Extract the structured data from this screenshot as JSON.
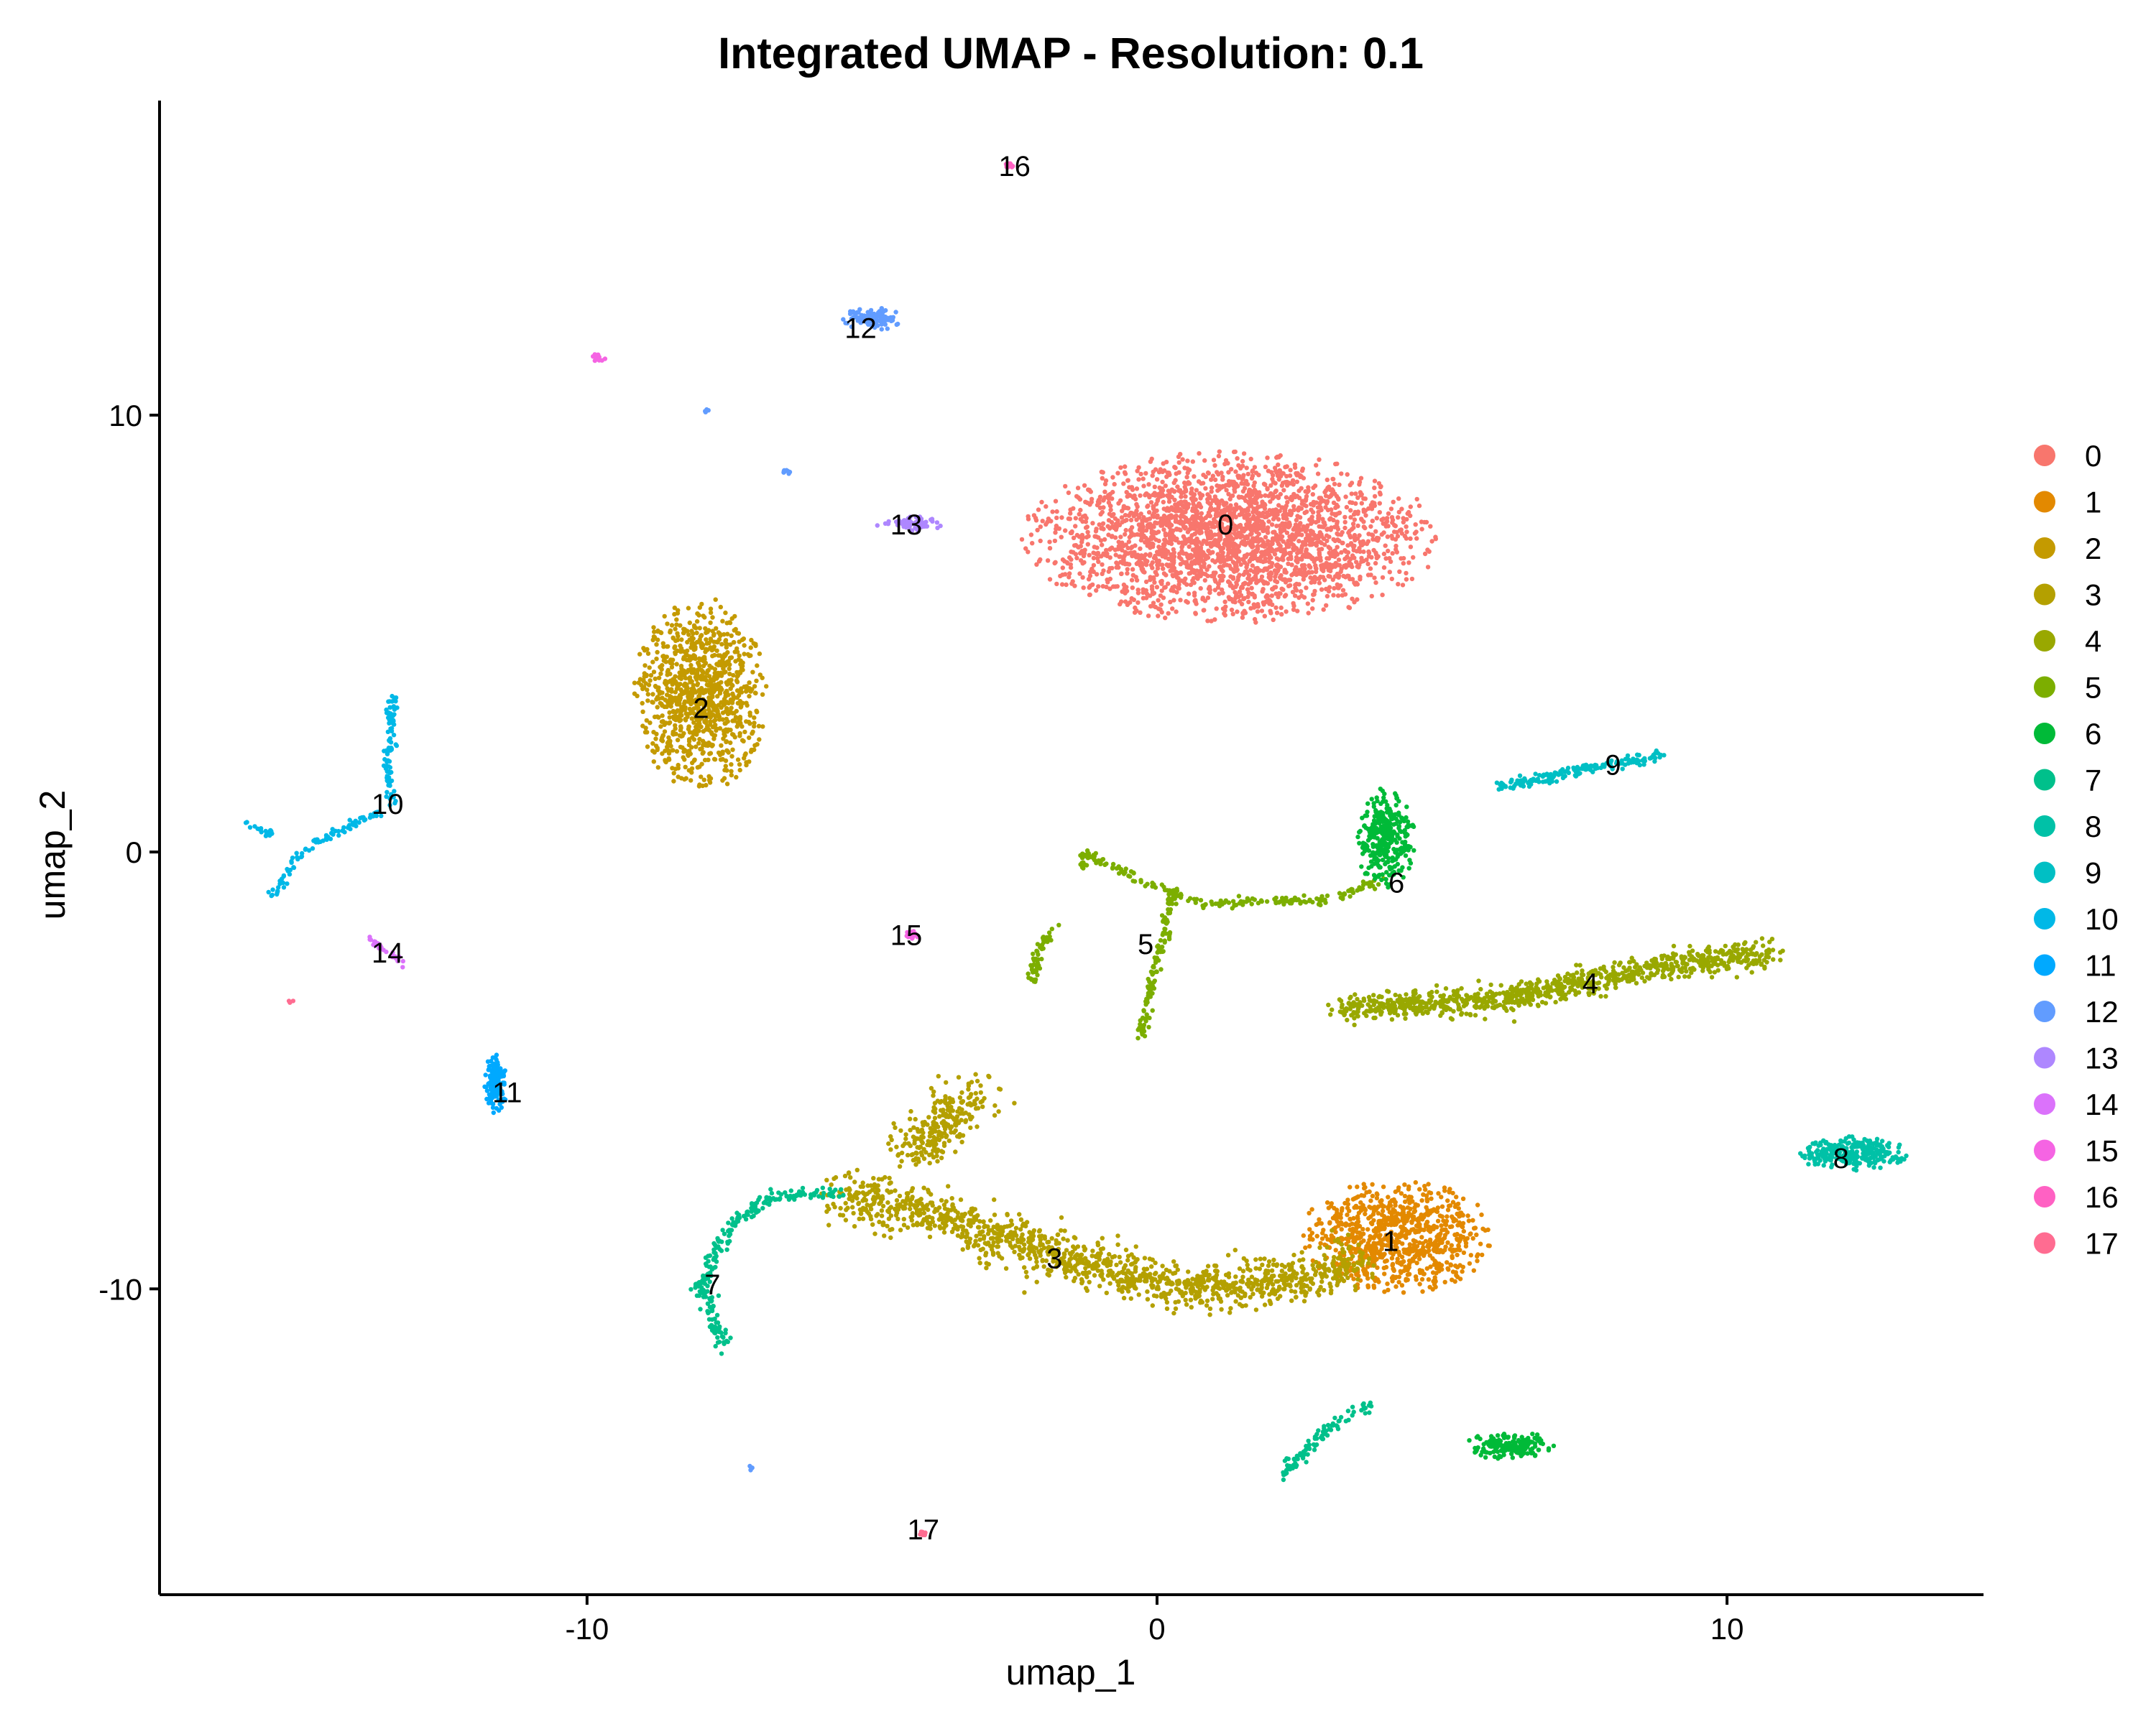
{
  "chart_data": {
    "type": "scatter",
    "title": "Integrated UMAP - Resolution: 0.1",
    "xlabel": "umap_1",
    "ylabel": "umap_2",
    "xlim": [
      -17.5,
      14.5
    ],
    "ylim": [
      -17.0,
      17.2
    ],
    "x_ticks": [
      -10,
      0,
      10
    ],
    "y_ticks": [
      10,
      0,
      -10
    ],
    "x_tick_labels": [
      "-10",
      "0",
      "10"
    ],
    "y_tick_labels": [
      "10",
      "0",
      "-10"
    ],
    "grid": false,
    "legend_position": "right",
    "point_size": 2,
    "clusters": [
      {
        "name": "0",
        "color": "#F8766D",
        "label_pos": [
          1.2,
          7.5
        ],
        "n": 2600,
        "blobs": [
          {
            "cx": 1.3,
            "cy": 7.2,
            "sx": 2.8,
            "sy": 1.5,
            "n": 1
          }
        ]
      },
      {
        "name": "1",
        "color": "#E38900",
        "label_pos": [
          4.1,
          -8.9
        ],
        "n": 850,
        "blobs": [
          {
            "cx": 4.2,
            "cy": -8.8,
            "sx": 1.3,
            "sy": 1.0,
            "n": 1
          }
        ]
      },
      {
        "name": "2",
        "color": "#C49A00",
        "label_pos": [
          -8.0,
          3.3
        ],
        "n": 1000,
        "blobs": [
          {
            "cx": -8.0,
            "cy": 3.6,
            "sx": 0.9,
            "sy": 1.7,
            "n": 1
          }
        ]
      },
      {
        "name": "3",
        "color": "#B4A000",
        "label_pos": [
          -1.8,
          -9.3
        ],
        "n": 1500,
        "paths": [
          [
            [
              -5.5,
              -7.8
            ],
            [
              -3.5,
              -8.5
            ],
            [
              -1.5,
              -9.3
            ],
            [
              0.5,
              -10.0
            ],
            [
              2.5,
              -9.8
            ],
            [
              3.5,
              -9.4
            ]
          ],
          [
            [
              -4.3,
              -6.9
            ],
            [
              -3.6,
              -6.0
            ],
            [
              -3.2,
              -5.5
            ]
          ]
        ],
        "spread": 0.45
      },
      {
        "name": "4",
        "color": "#99A800",
        "label_pos": [
          7.6,
          -3.0
        ],
        "n": 900,
        "paths": [
          [
            [
              3.3,
              -3.6
            ],
            [
              6.0,
              -3.4
            ],
            [
              8.5,
              -2.7
            ],
            [
              10.8,
              -2.3
            ]
          ]
        ],
        "spread": 0.25
      },
      {
        "name": "5",
        "color": "#7CAE00",
        "label_pos": [
          -0.2,
          -2.1
        ],
        "n": 380,
        "paths": [
          [
            [
              -1.3,
              0.0
            ],
            [
              -0.5,
              -0.5
            ],
            [
              0.8,
              -1.2
            ],
            [
              3.0,
              -1.1
            ],
            [
              4.0,
              -0.6
            ]
          ],
          [
            [
              0.3,
              -0.8
            ],
            [
              0.0,
              -2.5
            ],
            [
              -0.3,
              -4.3
            ]
          ],
          [
            [
              -1.3,
              0.0
            ],
            [
              -1.3,
              -0.4
            ]
          ],
          [
            [
              -1.8,
              -1.7
            ],
            [
              -2.1,
              -2.3
            ],
            [
              -2.2,
              -3.0
            ]
          ]
        ],
        "spread": 0.08
      },
      {
        "name": "6",
        "color": "#00BA38",
        "label_pos": [
          4.2,
          -0.7
        ],
        "n": 500,
        "blobs": [
          {
            "cx": 4.0,
            "cy": 0.3,
            "sx": 0.4,
            "sy": 0.9,
            "n": 0.65
          },
          {
            "cx": 6.2,
            "cy": -13.6,
            "sx": 0.6,
            "sy": 0.25,
            "n": 0.35
          }
        ]
      },
      {
        "name": "7",
        "color": "#00C08B",
        "label_pos": [
          -7.8,
          -9.9
        ],
        "n": 330,
        "paths": [
          [
            [
              -5.6,
              -7.8
            ],
            [
              -6.8,
              -7.9
            ],
            [
              -7.5,
              -8.6
            ],
            [
              -8.0,
              -9.9
            ],
            [
              -7.6,
              -11.4
            ]
          ],
          [
            [
              2.2,
              -14.3
            ],
            [
              3.0,
              -13.2
            ],
            [
              3.8,
              -12.6
            ]
          ]
        ],
        "spread": 0.12
      },
      {
        "name": "8",
        "color": "#00C1A7",
        "label_pos": [
          12.0,
          -7.0
        ],
        "n": 280,
        "blobs": [
          {
            "cx": 12.2,
            "cy": -6.9,
            "sx": 0.75,
            "sy": 0.3,
            "n": 1
          }
        ]
      },
      {
        "name": "9",
        "color": "#00BFC4",
        "label_pos": [
          8.0,
          2.0
        ],
        "n": 170,
        "paths": [
          [
            [
              6.0,
              1.5
            ],
            [
              7.5,
              1.9
            ],
            [
              8.8,
              2.2
            ]
          ]
        ],
        "spread": 0.1
      },
      {
        "name": "10",
        "color": "#00B8E7",
        "label_pos": [
          -13.5,
          1.1
        ],
        "n": 200,
        "paths": [
          [
            [
              -13.4,
              3.6
            ],
            [
              -13.5,
              2.0
            ],
            [
              -13.4,
              1.1
            ]
          ],
          [
            [
              -13.6,
              0.9
            ],
            [
              -14.5,
              0.4
            ],
            [
              -15.0,
              0.0
            ],
            [
              -15.5,
              -1.0
            ]
          ],
          [
            [
              -16.0,
              0.6
            ],
            [
              -15.5,
              0.4
            ]
          ]
        ],
        "spread": 0.08
      },
      {
        "name": "11",
        "color": "#00A9FF",
        "label_pos": [
          -11.4,
          -5.5
        ],
        "n": 160,
        "blobs": [
          {
            "cx": -11.6,
            "cy": -5.3,
            "sx": 0.15,
            "sy": 0.55,
            "n": 1
          }
        ]
      },
      {
        "name": "12",
        "color": "#619CFF",
        "label_pos": [
          -5.2,
          12.0
        ],
        "n": 120,
        "blobs": [
          {
            "cx": -5.0,
            "cy": 12.2,
            "sx": 0.4,
            "sy": 0.2,
            "n": 0.85
          },
          {
            "cx": -6.5,
            "cy": 8.7,
            "sx": 0.08,
            "sy": 0.05,
            "n": 0.08
          },
          {
            "cx": -7.9,
            "cy": 10.1,
            "sx": 0.05,
            "sy": 0.05,
            "n": 0.04
          },
          {
            "cx": -7.1,
            "cy": -14.1,
            "sx": 0.05,
            "sy": 0.05,
            "n": 0.03
          }
        ]
      },
      {
        "name": "13",
        "color": "#AE87FF",
        "label_pos": [
          -4.4,
          7.5
        ],
        "n": 60,
        "blobs": [
          {
            "cx": -4.3,
            "cy": 7.5,
            "sx": 0.5,
            "sy": 0.15,
            "n": 1
          }
        ]
      },
      {
        "name": "14",
        "color": "#DB72FB",
        "label_pos": [
          -13.5,
          -2.3
        ],
        "n": 30,
        "paths": [
          [
            [
              -13.8,
              -2.0
            ],
            [
              -13.1,
              -2.7
            ]
          ]
        ],
        "spread": 0.05
      },
      {
        "name": "15",
        "color": "#F564E3",
        "label_pos": [
          -4.4,
          -1.9
        ],
        "n": 40,
        "blobs": [
          {
            "cx": -4.3,
            "cy": -1.9,
            "sx": 0.1,
            "sy": 0.08,
            "n": 0.6
          },
          {
            "cx": -9.8,
            "cy": 11.3,
            "sx": 0.1,
            "sy": 0.08,
            "n": 0.4
          }
        ]
      },
      {
        "name": "16",
        "color": "#FF61C3",
        "label_pos": [
          -2.5,
          15.7
        ],
        "n": 12,
        "blobs": [
          {
            "cx": -2.6,
            "cy": 15.7,
            "sx": 0.06,
            "sy": 0.06,
            "n": 1
          }
        ]
      },
      {
        "name": "17",
        "color": "#FF6C91",
        "label_pos": [
          -4.1,
          -15.5
        ],
        "n": 12,
        "blobs": [
          {
            "cx": -4.1,
            "cy": -15.6,
            "sx": 0.08,
            "sy": 0.06,
            "n": 0.75
          },
          {
            "cx": -15.2,
            "cy": -3.4,
            "sx": 0.04,
            "sy": 0.04,
            "n": 0.25
          }
        ]
      }
    ]
  }
}
